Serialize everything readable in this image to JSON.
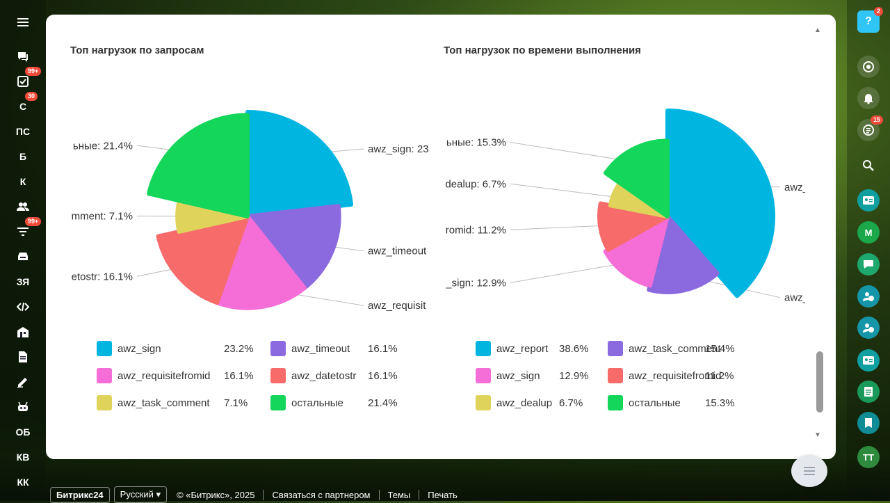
{
  "left_rail": {
    "items": [
      {
        "icon": "hamburger-icon"
      },
      {
        "icon": "chat-icon"
      },
      {
        "icon": "tasks-icon",
        "badge": "99+"
      },
      {
        "label": "С",
        "badge": "30"
      },
      {
        "label": "ПС"
      },
      {
        "label": "Б"
      },
      {
        "label": "К"
      },
      {
        "icon": "users-icon"
      },
      {
        "icon": "filter-icon",
        "badge": "99+"
      },
      {
        "icon": "inbox-icon"
      },
      {
        "label": "ЗЯ"
      },
      {
        "icon": "code-icon"
      },
      {
        "icon": "building-icon"
      },
      {
        "icon": "document-icon"
      },
      {
        "icon": "pen-icon"
      },
      {
        "icon": "robot-icon"
      },
      {
        "label": "ОБ"
      },
      {
        "label": "КВ"
      },
      {
        "label": "КК"
      }
    ]
  },
  "right_rail": {
    "help_badge": "2",
    "help_label": "?",
    "tasks_badge": "15",
    "user_initials": "ТТ",
    "market_label": "M"
  },
  "charts": {
    "left_title": "Топ нагрузок по запросам",
    "right_title": "Топ нагрузок по времени выполнения"
  },
  "chart_data": [
    {
      "type": "pie",
      "title": "Топ нагрузок по запросам",
      "slices": [
        {
          "label": "awz_sign",
          "value": 23.2,
          "color": "#00b6e0",
          "callout": "awz_sign: 23"
        },
        {
          "label": "awz_timeout",
          "value": 16.1,
          "color": "#8b6adf",
          "callout": "awz_timeout"
        },
        {
          "label": "awz_requisitefromid",
          "value": 16.1,
          "color": "#f56ed8",
          "callout": "awz_requisit"
        },
        {
          "label": "awz_datetostr",
          "value": 16.1,
          "color": "#f76b6b",
          "callout": "etostr: 16.1%"
        },
        {
          "label": "awz_task_comment",
          "value": 7.1,
          "color": "#e0d35c",
          "callout": "mment: 7.1%"
        },
        {
          "label": "остальные",
          "value": 21.4,
          "color": "#13d65a",
          "callout": "ьные: 21.4%"
        }
      ],
      "legend_pct": [
        "23.2%",
        "16.1%",
        "16.1%",
        "16.1%",
        "7.1%",
        "21.4%"
      ]
    },
    {
      "type": "pie",
      "title": "Топ нагрузок по времени выполнения",
      "slices": [
        {
          "label": "awz_report",
          "value": 38.6,
          "color": "#00b6e0",
          "callout": "awz_report:"
        },
        {
          "label": "awz_task_comment",
          "value": 15.4,
          "color": "#8b6adf",
          "callout": "awz_task_con"
        },
        {
          "label": "awz_sign",
          "value": 12.9,
          "color": "#f56ed8",
          "callout": "_sign: 12.9%"
        },
        {
          "label": "awz_requisitefromid",
          "value": 11.2,
          "color": "#f76b6b",
          "callout": "romid: 11.2%"
        },
        {
          "label": "awz_dealup",
          "value": 6.7,
          "color": "#e0d35c",
          "callout": "dealup: 6.7%"
        },
        {
          "label": "остальные",
          "value": 15.3,
          "color": "#13d65a",
          "callout": "ьные: 15.3%"
        }
      ],
      "legend_pct": [
        "38.6%",
        "15.4%",
        "12.9%",
        "11.2%",
        "6.7%",
        "15.3%"
      ]
    }
  ],
  "footer": {
    "brand": "Битрикс24",
    "language": "Русский",
    "copyright": "© «Битрикс», 2025",
    "partner_link": "Связаться с партнером",
    "themes_link": "Темы",
    "print_link": "Печать"
  }
}
